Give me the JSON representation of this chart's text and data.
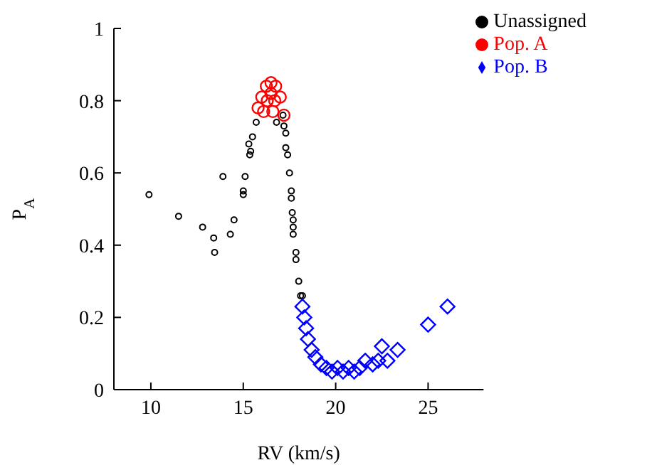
{
  "chart_data": {
    "type": "scatter",
    "xlabel": "RV (km/s)",
    "ylabel": "P$_{A}$",
    "xlim": [
      8,
      28
    ],
    "ylim": [
      0,
      1
    ],
    "xticks": [
      10,
      15,
      20,
      25
    ],
    "yticks": [
      0,
      0.2,
      0.4,
      0.6,
      0.8,
      1
    ],
    "grid": false,
    "legend": "top right",
    "series": [
      {
        "name": "Unassigned",
        "color": "#000000",
        "marker": "circle",
        "x": [
          9.9,
          11.5,
          12.8,
          13.4,
          13.45,
          13.9,
          14.3,
          14.5,
          15.0,
          15.0,
          15.1,
          15.3,
          15.35,
          15.4,
          15.5,
          15.7,
          16.8,
          17.15,
          17.2,
          17.3,
          17.3,
          17.4,
          17.5,
          17.6,
          17.6,
          17.65,
          17.7,
          17.7,
          17.7,
          17.85,
          17.85,
          18.0,
          18.1,
          18.2
        ],
        "values": [
          0.54,
          0.48,
          0.45,
          0.42,
          0.38,
          0.59,
          0.43,
          0.47,
          0.55,
          0.54,
          0.59,
          0.68,
          0.65,
          0.66,
          0.7,
          0.74,
          0.74,
          0.76,
          0.73,
          0.71,
          0.67,
          0.65,
          0.6,
          0.55,
          0.53,
          0.49,
          0.47,
          0.45,
          0.43,
          0.38,
          0.36,
          0.3,
          0.26,
          0.26
        ]
      },
      {
        "name": "Pop. A",
        "color": "#ff0000",
        "marker": "circle",
        "x": [
          15.8,
          16.1,
          16.6,
          17.2,
          16.0,
          16.25,
          16.5,
          16.75,
          17.0,
          16.3,
          16.7,
          16.5
        ],
        "values": [
          0.78,
          0.77,
          0.77,
          0.76,
          0.81,
          0.84,
          0.85,
          0.84,
          0.81,
          0.8,
          0.8,
          0.82
        ]
      },
      {
        "name": "Pop. B",
        "color": "#0000ff",
        "marker": "diamond",
        "x": [
          18.2,
          18.3,
          18.4,
          18.5,
          18.7,
          18.9,
          19.2,
          19.5,
          19.8,
          20.1,
          20.4,
          20.7,
          21.0,
          21.3,
          21.6,
          22.0,
          22.3,
          22.5,
          22.8,
          23.35,
          25.0,
          26.05
        ],
        "values": [
          0.23,
          0.2,
          0.17,
          0.14,
          0.11,
          0.09,
          0.07,
          0.06,
          0.05,
          0.06,
          0.05,
          0.06,
          0.05,
          0.06,
          0.08,
          0.07,
          0.08,
          0.12,
          0.08,
          0.11,
          0.18,
          0.23
        ]
      }
    ]
  }
}
